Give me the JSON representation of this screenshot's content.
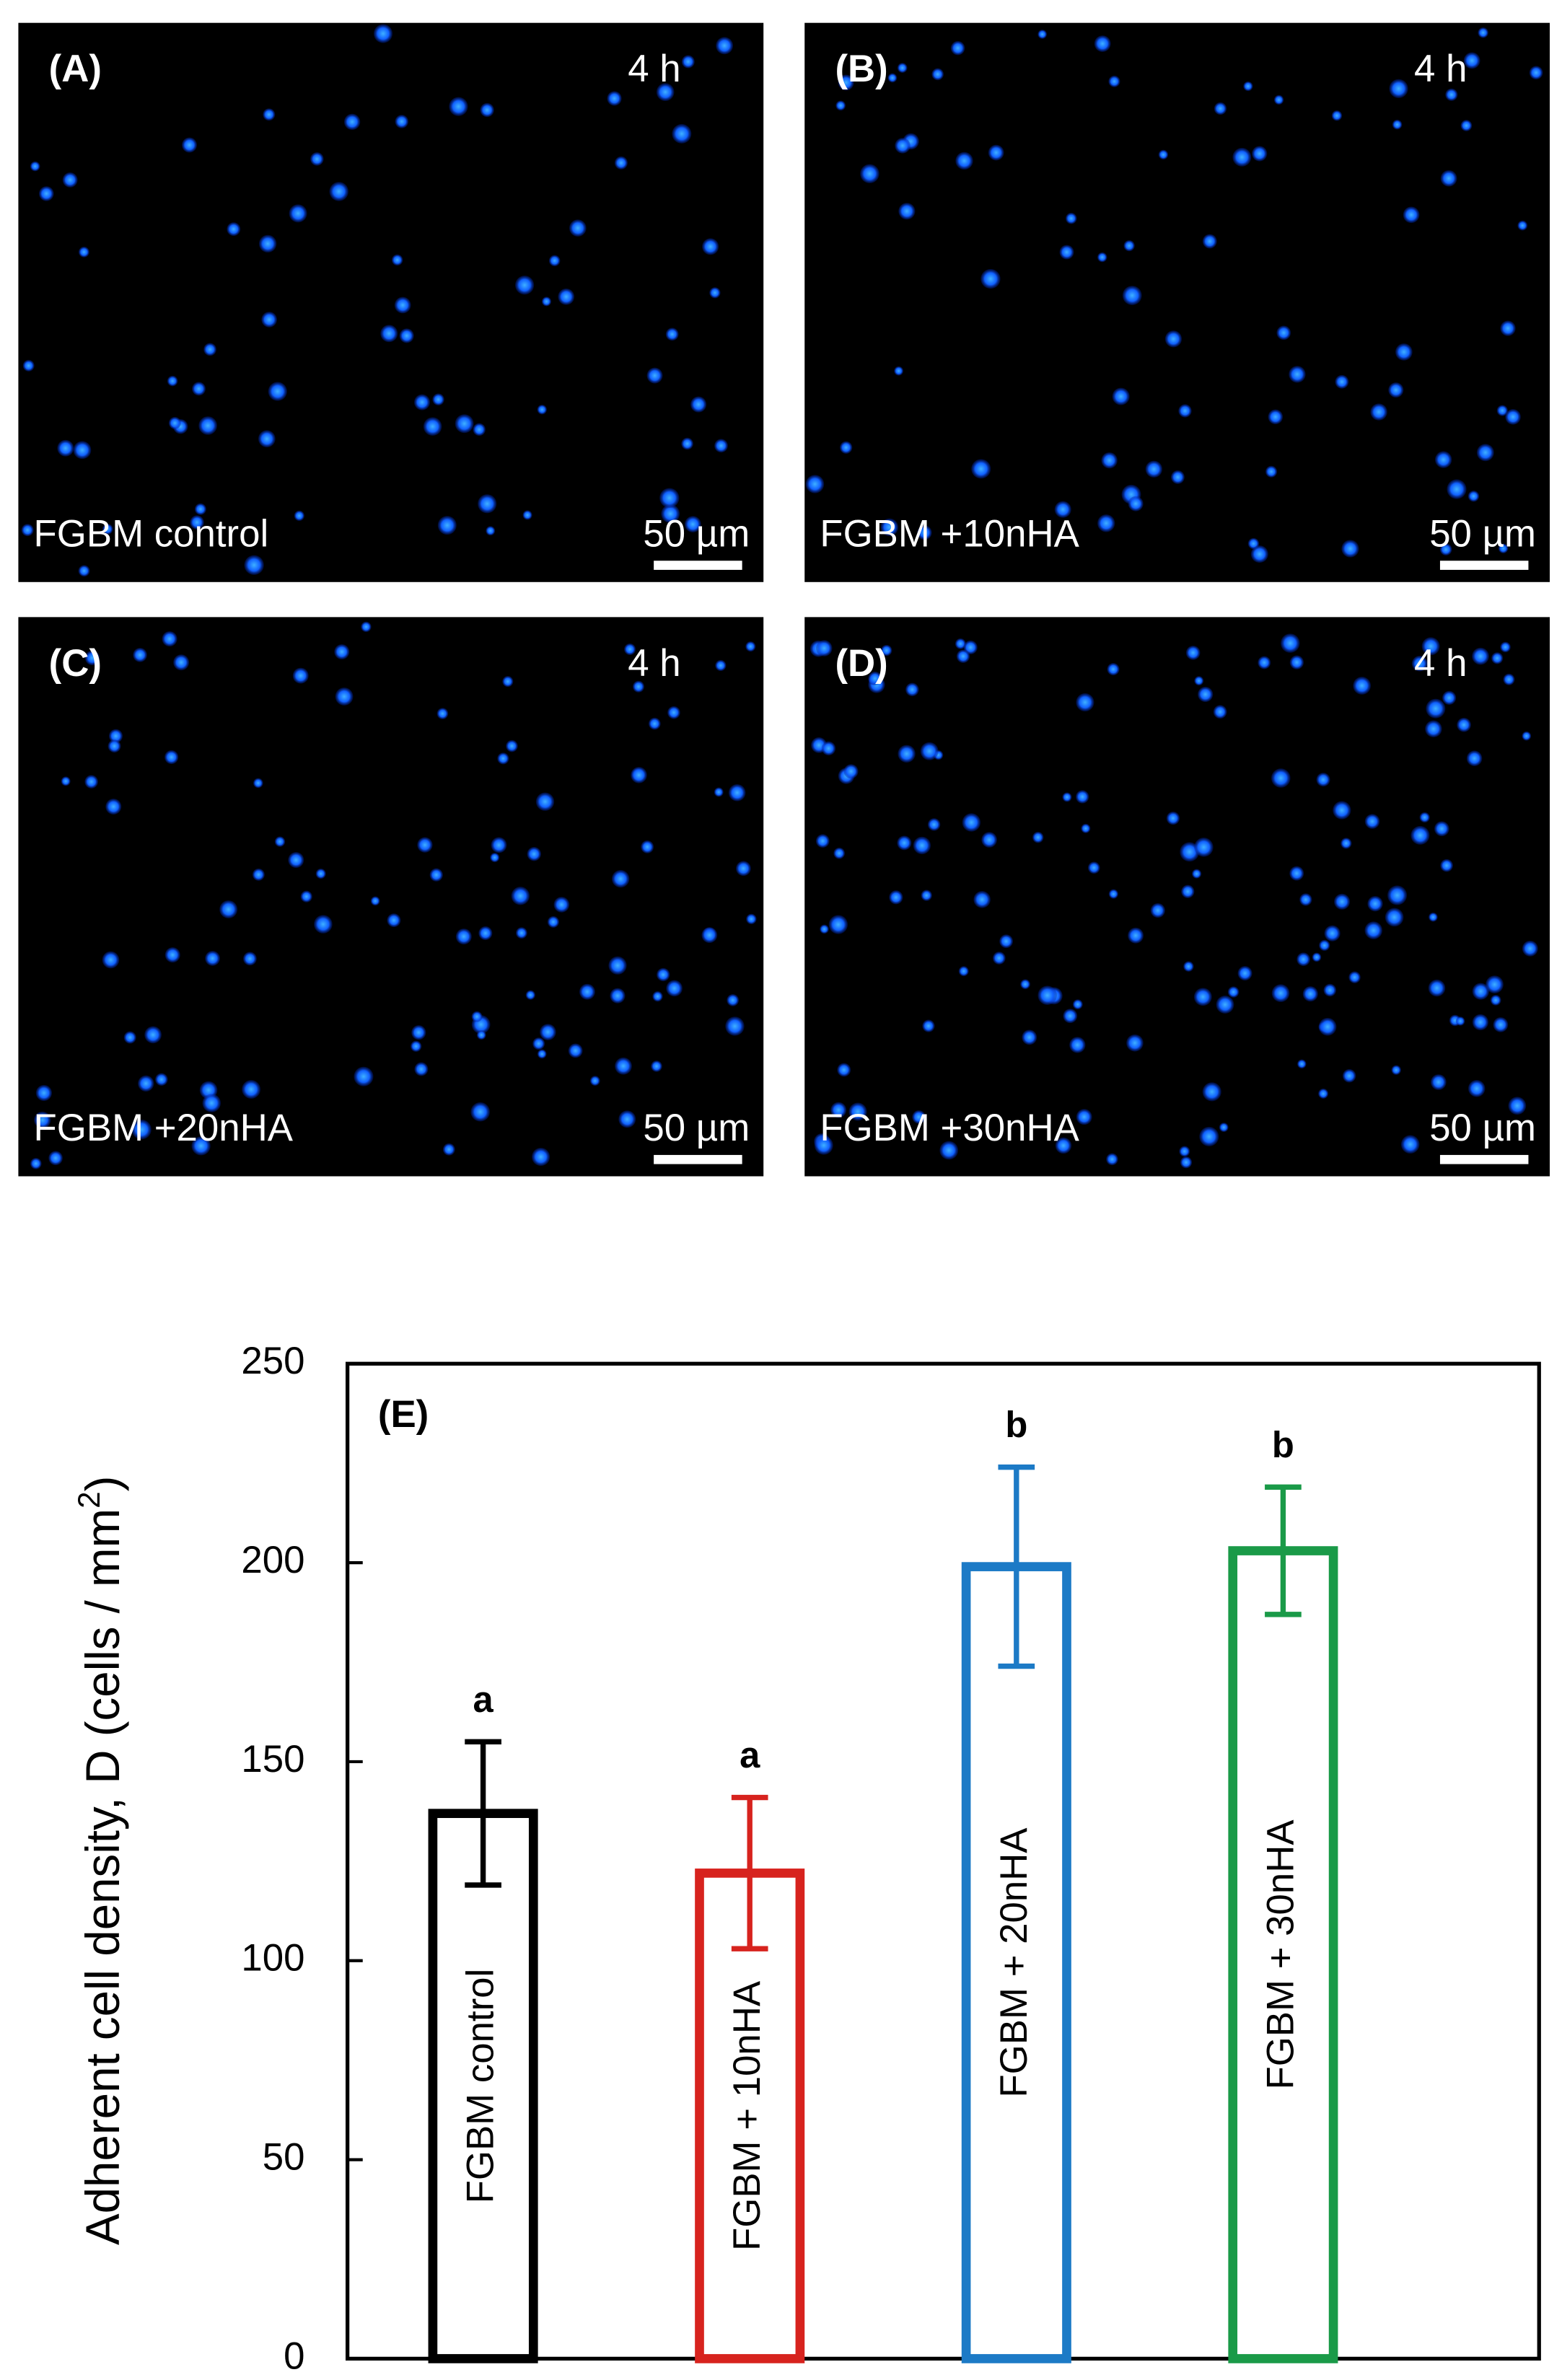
{
  "panels": [
    {
      "label": "(A)",
      "time": "4 h",
      "condition": "FGBM control",
      "scale_bar": "50 µm"
    },
    {
      "label": "(B)",
      "time": "4 h",
      "condition": "FGBM +10nHA",
      "scale_bar": "50 µm"
    },
    {
      "label": "(C)",
      "time": "4 h",
      "condition": "FGBM +20nHA",
      "scale_bar": "50 µm"
    },
    {
      "label": "(D)",
      "time": "4 h",
      "condition": "FGBM +30nHA",
      "scale_bar": "50 µm"
    }
  ],
  "chart_data": {
    "type": "bar",
    "panel_label": "(E)",
    "y_label": {
      "text": "Adherent cell density, D (cells / mm",
      "sup": "2",
      "end": ")"
    },
    "categories": [
      "FGBM control",
      "FGBM + 10nHA",
      "FGBM + 20nHA",
      "FGBM + 30nHA"
    ],
    "values": [
      137,
      122,
      199,
      203
    ],
    "errors": [
      18,
      19,
      25,
      16
    ],
    "annotations": [
      "a",
      "a",
      "b",
      "b"
    ],
    "colors": [
      "#000000",
      "#d7231e",
      "#1c7ac6",
      "#1a9a48"
    ],
    "ylim": [
      0,
      250
    ],
    "yticks": [
      0,
      50,
      100,
      150,
      200,
      250
    ]
  }
}
